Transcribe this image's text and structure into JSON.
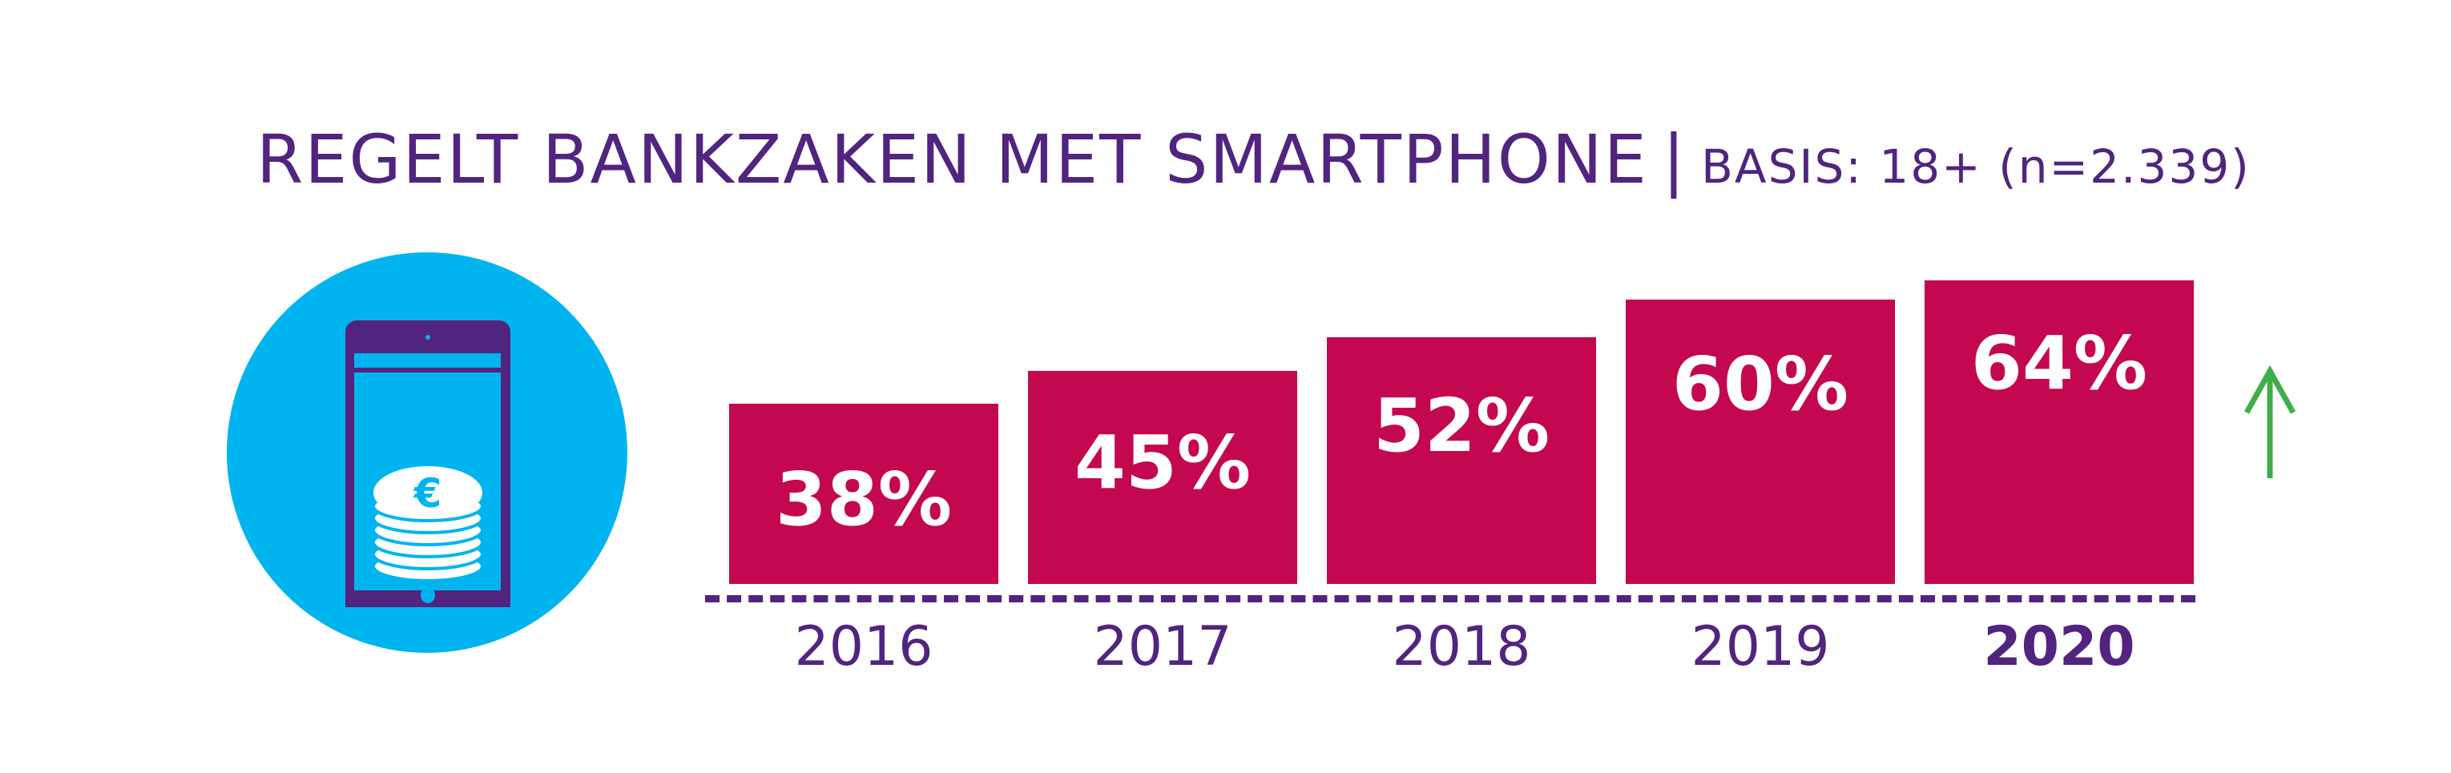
{
  "title": {
    "main": "REGELT BANKZAKEN MET SMARTPHONE",
    "separator": "|",
    "subtitle": "BASIS: 18+ (n=2.339)"
  },
  "icon": "smartphone-euro-coins-icon",
  "trend_icon": "arrow-up-icon",
  "colors": {
    "bar": "#c4084f",
    "text": "#51247f",
    "circle": "#00b5ef",
    "arrow": "#3fae49"
  },
  "chart_data": {
    "type": "bar",
    "title": "REGELT BANKZAKEN MET SMARTPHONE | BASIS: 18+ (n=2.339)",
    "categories": [
      "2016",
      "2017",
      "2018",
      "2019",
      "2020"
    ],
    "values": [
      38,
      45,
      52,
      60,
      64
    ],
    "labels": [
      "38%",
      "45%",
      "52%",
      "60%",
      "64%"
    ],
    "unit": "%",
    "xlabel": "",
    "ylabel": "",
    "ylim": [
      0,
      100
    ],
    "grid": false,
    "highlight_category": "2020"
  }
}
